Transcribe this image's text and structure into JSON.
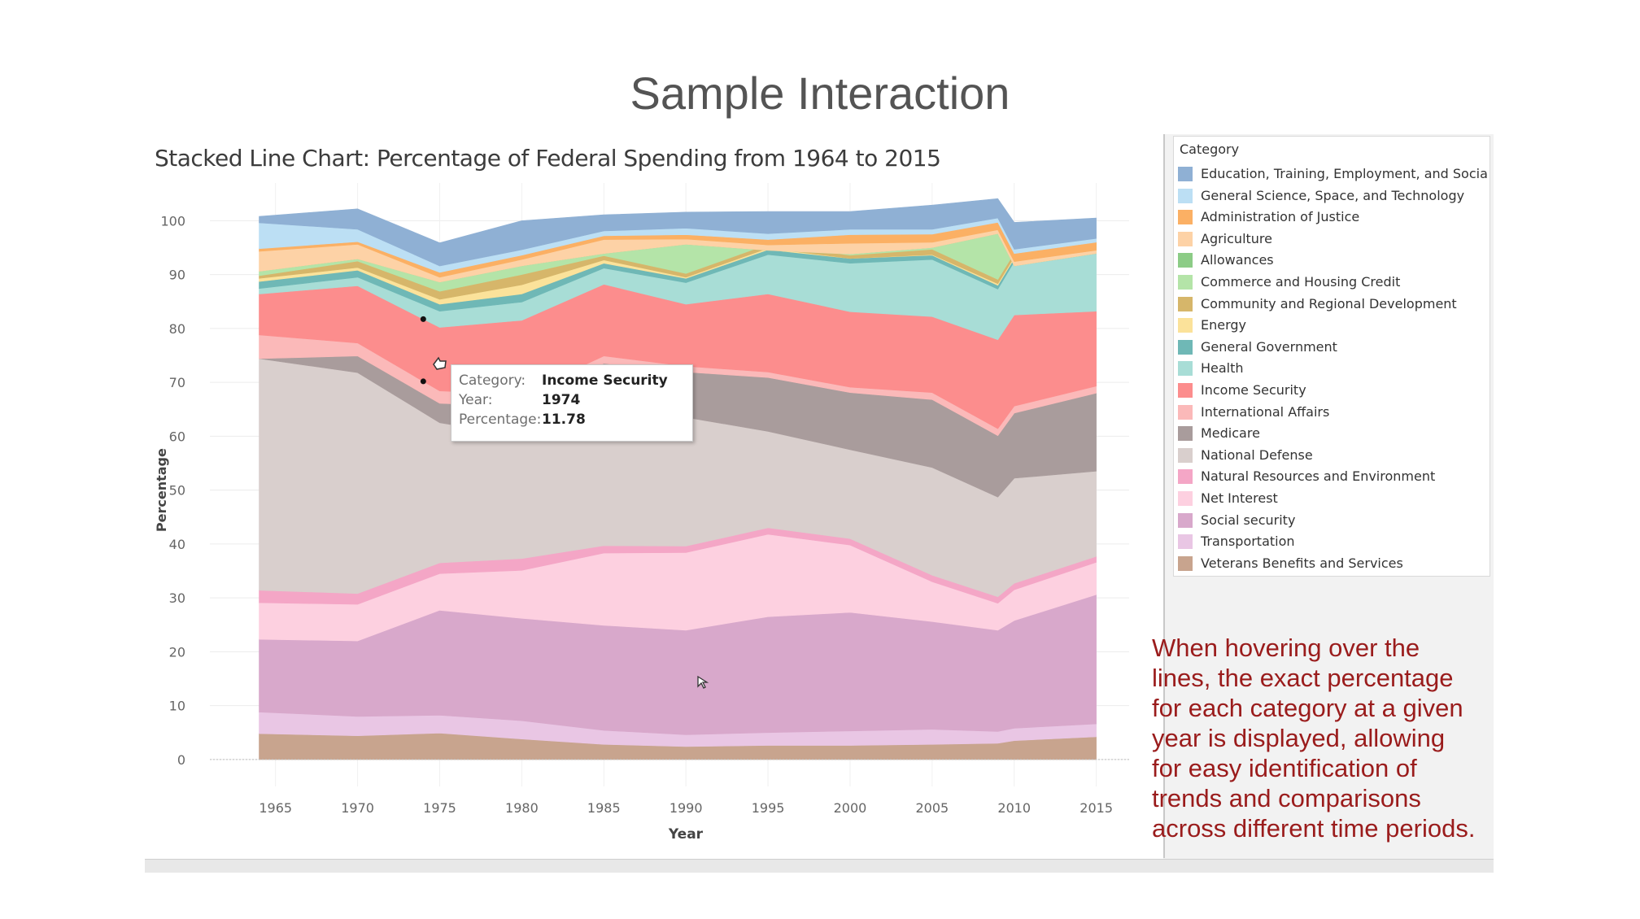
{
  "slide": {
    "title": "Sample Interaction",
    "caption": "When hovering over the lines, the exact percentage for each category at a given year is displayed, allowing for easy identification of trends and comparisons across different time periods."
  },
  "tooltip": {
    "category_key": "Category:",
    "category_value": "Income Security",
    "year_key": "Year:",
    "year_value": "1974",
    "percentage_key": "Percentage:",
    "percentage_value": "11.78"
  },
  "legend": {
    "title": "Category"
  },
  "chart_data": {
    "type": "area",
    "stacked": true,
    "title": "Stacked Line Chart: Percentage of Federal Spending from 1964 to 2015",
    "xlabel": "Year",
    "ylabel": "Percentage",
    "ylim": [
      -5,
      107
    ],
    "xlim": [
      1961,
      2017
    ],
    "yticks": [
      0,
      10,
      20,
      30,
      40,
      50,
      60,
      70,
      80,
      90,
      100
    ],
    "xticks": [
      1965,
      1970,
      1975,
      1980,
      1985,
      1990,
      1995,
      2000,
      2005,
      2010,
      2015
    ],
    "grid": true,
    "legend_position": "right",
    "x": [
      1964,
      1970,
      1975,
      1980,
      1985,
      1990,
      1995,
      2000,
      2005,
      2009,
      2010,
      2015
    ],
    "series": [
      {
        "name": "Veterans Benefits and Services",
        "color": "#c8a48e",
        "values": [
          4.8,
          4.4,
          4.9,
          3.8,
          2.8,
          2.4,
          2.6,
          2.6,
          2.8,
          3.0,
          3.5,
          4.2
        ]
      },
      {
        "name": "Transportation",
        "color": "#e9c6e4",
        "values": [
          4.0,
          3.6,
          3.3,
          3.4,
          2.6,
          2.2,
          2.4,
          2.7,
          2.8,
          2.2,
          2.3,
          2.4
        ]
      },
      {
        "name": "Social security",
        "color": "#d8a8cb",
        "values": [
          13.5,
          14.0,
          19.5,
          19.0,
          19.5,
          19.4,
          21.5,
          22.0,
          20.0,
          18.8,
          20.0,
          24.0
        ]
      },
      {
        "name": "Net Interest",
        "color": "#fdd0e0",
        "values": [
          6.8,
          6.8,
          6.8,
          8.9,
          13.4,
          14.4,
          15.3,
          12.5,
          7.4,
          5.0,
          5.7,
          6.0
        ]
      },
      {
        "name": "Natural Resources and Environment",
        "color": "#f4a6c6",
        "values": [
          2.3,
          2.0,
          2.0,
          2.2,
          1.4,
          1.2,
          1.2,
          1.2,
          1.2,
          1.2,
          1.2,
          1.1
        ]
      },
      {
        "name": "National Defense",
        "color": "#d9cfcd",
        "values": [
          43.0,
          41.0,
          26.0,
          22.7,
          26.7,
          23.9,
          17.9,
          16.5,
          20.0,
          18.5,
          19.5,
          15.8
        ]
      },
      {
        "name": "Medicare",
        "color": "#a99c9c",
        "values": [
          0.0,
          3.1,
          3.6,
          5.5,
          7.1,
          8.4,
          10.0,
          10.6,
          12.6,
          11.4,
          12.1,
          14.5
        ]
      },
      {
        "name": "International Affairs",
        "color": "#fbb9b9",
        "values": [
          4.4,
          2.4,
          2.3,
          2.3,
          1.4,
          1.1,
          1.0,
          1.0,
          1.3,
          1.3,
          1.3,
          1.3
        ]
      },
      {
        "name": "Income Security",
        "color": "#fc8d8d",
        "values": [
          7.6,
          10.6,
          11.8,
          13.7,
          13.3,
          11.5,
          14.5,
          14.0,
          14.1,
          16.5,
          16.9,
          13.9
        ]
      },
      {
        "name": "Health",
        "color": "#a8ddd6",
        "values": [
          1.0,
          1.6,
          3.0,
          3.4,
          3.0,
          4.0,
          7.3,
          9.0,
          10.6,
          9.4,
          9.9,
          11.5
        ]
      },
      {
        "name": "General Government",
        "color": "#6fb8b6",
        "values": [
          1.3,
          1.3,
          1.3,
          1.5,
          0.9,
          0.8,
          0.9,
          0.9,
          0.8,
          0.7,
          0.6,
          0.6
        ]
      },
      {
        "name": "Energy",
        "color": "#fbe29a",
        "values": [
          0.6,
          0.5,
          0.9,
          1.7,
          0.6,
          0.2,
          0.3,
          0.0,
          0.1,
          0.3,
          0.3,
          0.2
        ]
      },
      {
        "name": "Community and Regional Development",
        "color": "#d6b66a",
        "values": [
          0.5,
          1.2,
          1.5,
          1.9,
          0.8,
          0.7,
          0.7,
          0.6,
          1.0,
          0.8,
          0.7,
          0.6
        ]
      },
      {
        "name": "Commerce and Housing Credit",
        "color": "#b4e4a8",
        "values": [
          0.8,
          0.4,
          1.7,
          1.6,
          0.4,
          5.4,
          -1.1,
          0.2,
          0.3,
          8.5,
          -2.4,
          -2.2
        ]
      },
      {
        "name": "Allowances",
        "color": "#8ccc86",
        "values": [
          0.0,
          0.0,
          0.0,
          0.0,
          0.0,
          0.0,
          0.0,
          0.0,
          0.0,
          0.0,
          0.0,
          0.0
        ]
      },
      {
        "name": "Agriculture",
        "color": "#fdd2a6",
        "values": [
          3.7,
          2.7,
          0.9,
          1.2,
          2.6,
          1.0,
          1.0,
          2.0,
          1.0,
          0.7,
          0.8,
          0.6
        ]
      },
      {
        "name": "Administration of Justice",
        "color": "#fbb064",
        "values": [
          0.5,
          0.5,
          0.9,
          0.8,
          0.7,
          0.8,
          1.0,
          1.6,
          1.5,
          1.4,
          1.5,
          1.5
        ]
      },
      {
        "name": "General Science, Space, and Technology",
        "color": "#bcdff4",
        "values": [
          4.8,
          2.3,
          1.2,
          1.0,
          0.9,
          1.2,
          1.1,
          1.0,
          0.9,
          0.8,
          0.8,
          0.7
        ]
      },
      {
        "name": "Education, Training, Employment, and Social ..",
        "color": "#8fb0d4",
        "values": [
          1.2,
          3.8,
          4.3,
          5.4,
          3.0,
          3.0,
          4.1,
          3.3,
          4.5,
          3.6,
          5.0,
          3.8
        ]
      }
    ]
  }
}
